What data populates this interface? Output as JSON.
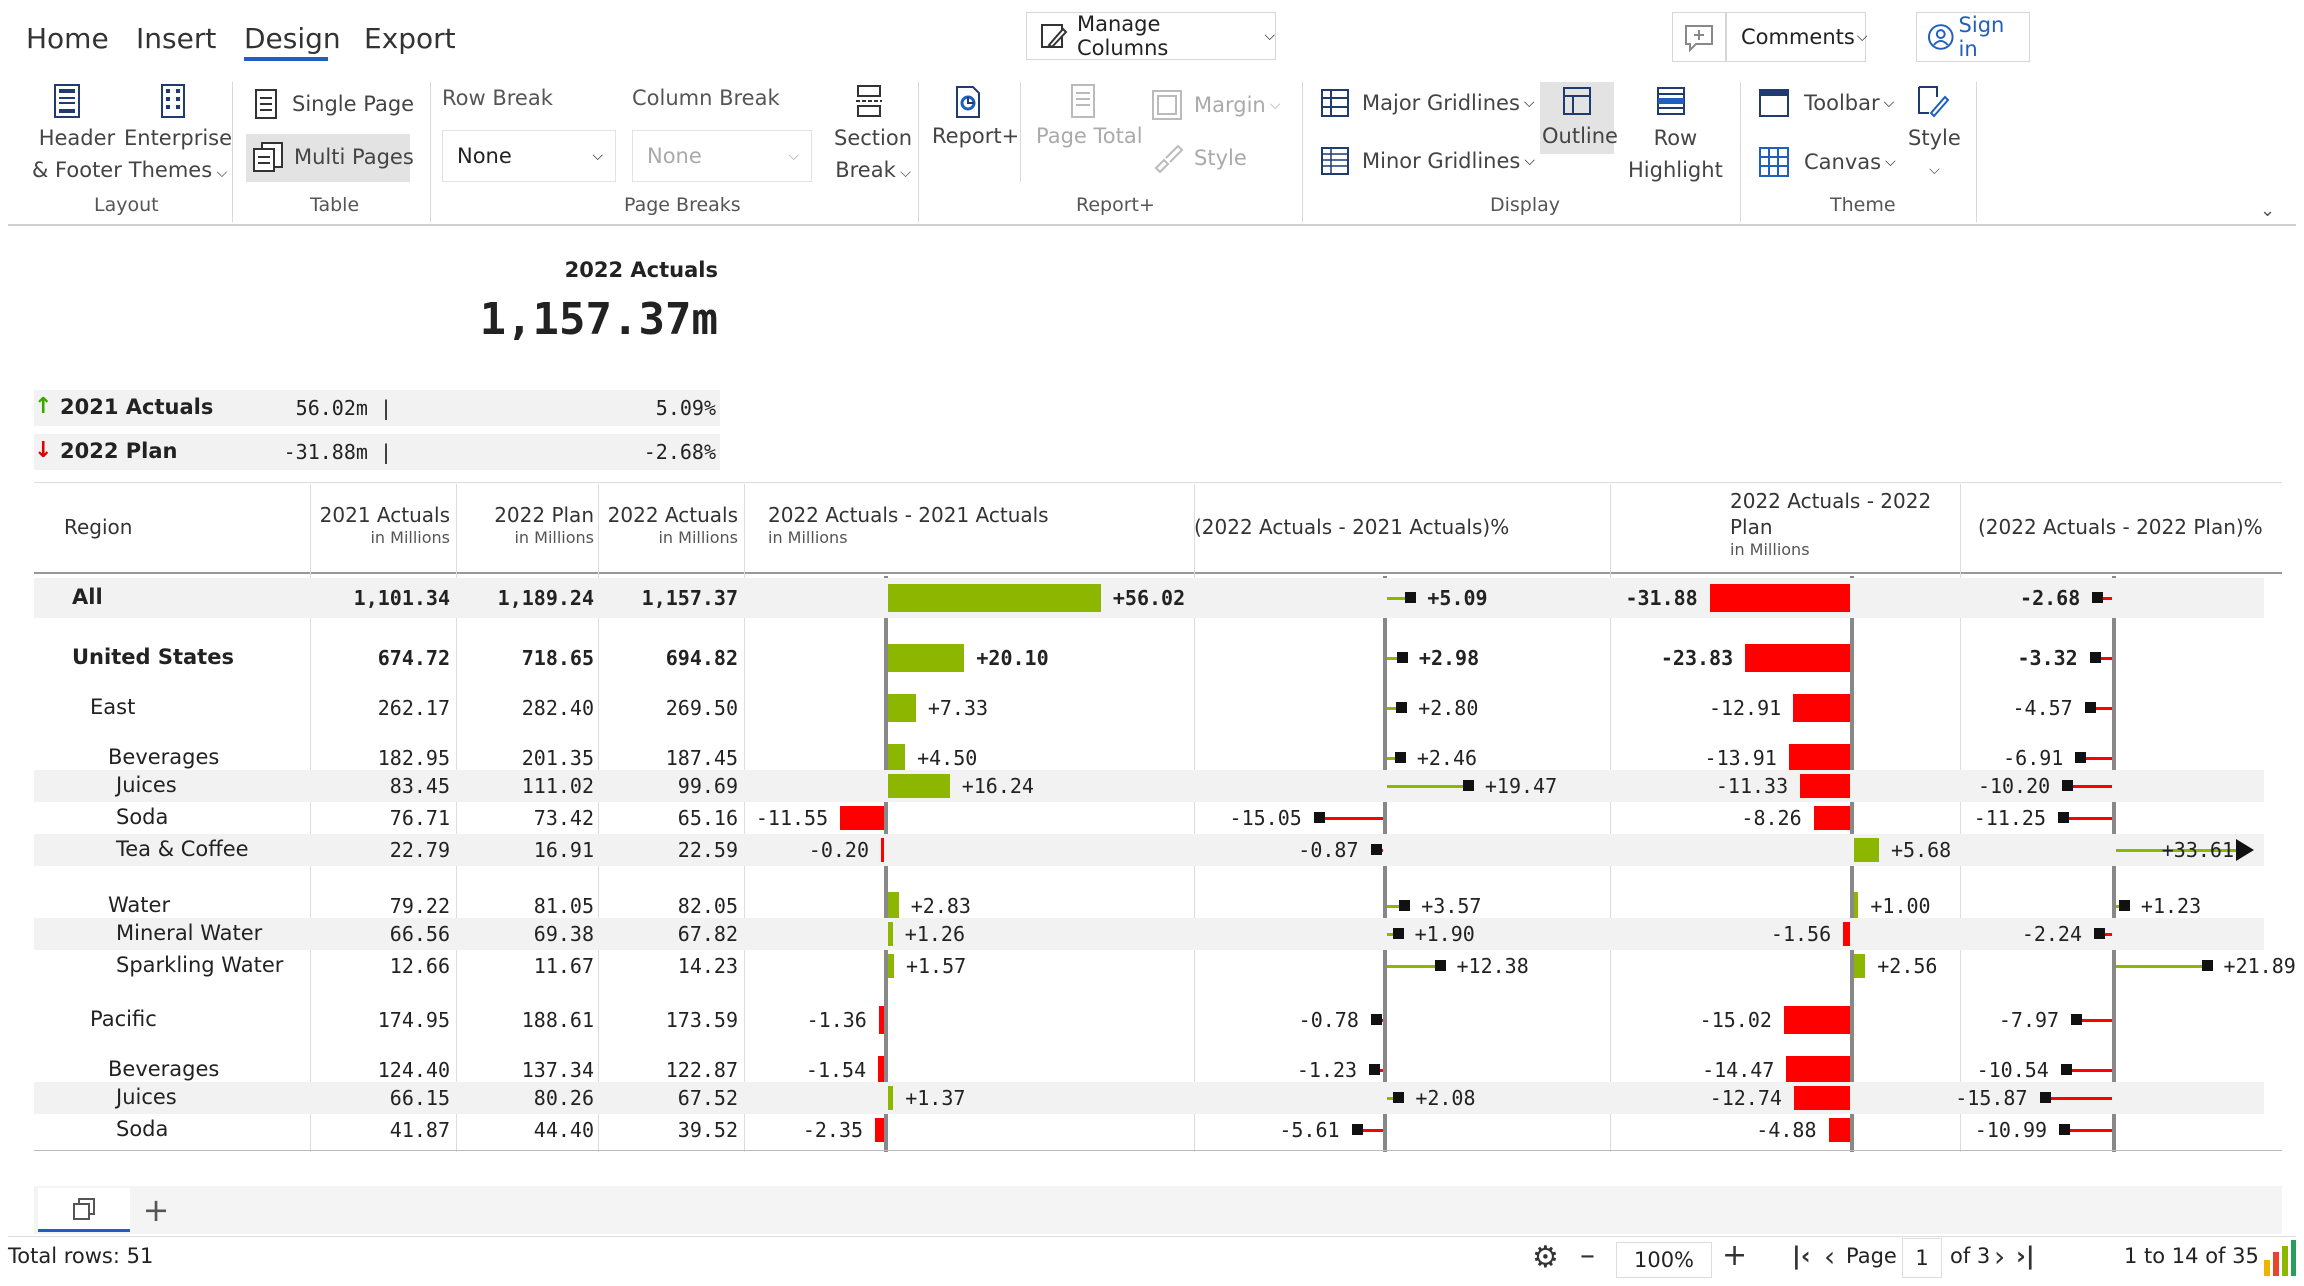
{
  "nav": {
    "tabs": [
      "Home",
      "Insert",
      "Design",
      "Export"
    ],
    "active": "Design"
  },
  "topbar": {
    "manage_columns": "Manage Columns",
    "comments": "Comments",
    "sign_in": "Sign in"
  },
  "ribbon": {
    "layout": {
      "header_footer_1": "Header",
      "header_footer_2": "& Footer",
      "themes_1": "Enterprise",
      "themes_2": "Themes",
      "title": "Layout"
    },
    "table": {
      "single_page": "Single Page",
      "multi_pages": "Multi Pages",
      "title": "Table"
    },
    "page_breaks": {
      "row_break_label": "Row Break",
      "row_break_value": "None",
      "column_break_label": "Column Break",
      "column_break_value": "None",
      "section_1": "Section",
      "section_2": "Break",
      "title": "Page Breaks"
    },
    "report_plus": {
      "report": "Report+",
      "page_total": "Page Total",
      "margin": "Margin",
      "style": "Style",
      "title": "Report+"
    },
    "display": {
      "major": "Major Gridlines",
      "minor": "Minor Gridlines",
      "outline": "Outline",
      "row_hl_1": "Row",
      "row_hl_2": "Highlight",
      "title": "Display"
    },
    "theme": {
      "toolbar": "Toolbar",
      "canvas": "Canvas",
      "style": "Style",
      "title": "Theme"
    }
  },
  "kpi": {
    "title": "2022 Actuals",
    "value": "1,157.37m",
    "rows": [
      {
        "label": "2021 Actuals",
        "abs": "56.02m |",
        "pct": "5.09%",
        "dir": "up"
      },
      {
        "label": "2022 Plan",
        "abs": "-31.88m |",
        "pct": "-2.68%",
        "dir": "down"
      }
    ]
  },
  "table": {
    "headers": {
      "region": "Region",
      "a21": "2021 Actuals",
      "plan": "2022 Plan",
      "a22": "2022 Actuals",
      "unit": "in Millions",
      "d1": "2022 Actuals - 2021 Actuals",
      "p1": "(2022 Actuals - 2021 Actuals)%",
      "d2_1": "2022 Actuals - 2022",
      "d2_2": "Plan",
      "p2": "(2022 Actuals - 2022 Plan)%"
    },
    "rows": [
      {
        "name": "All",
        "indent": 0,
        "bold": true,
        "a21": "1,101.34",
        "plan": "1,189.24",
        "a22": "1,157.37",
        "d1": 56.02,
        "d1_label": "+56.02",
        "p1": 5.09,
        "p1_label": "+5.09",
        "d2": -31.88,
        "d2_label": "-31.88",
        "p2": -2.68,
        "p2_label": "-2.68"
      },
      {
        "name": "United States",
        "indent": 0,
        "bold": true,
        "a21": "674.72",
        "plan": "718.65",
        "a22": "694.82",
        "d1": 20.1,
        "d1_label": "+20.10",
        "p1": 2.98,
        "p1_label": "+2.98",
        "d2": -23.83,
        "d2_label": "-23.83",
        "p2": -3.32,
        "p2_label": "-3.32"
      },
      {
        "name": "East",
        "indent": 1,
        "bold": false,
        "a21": "262.17",
        "plan": "282.40",
        "a22": "269.50",
        "d1": 7.33,
        "d1_label": "+7.33",
        "p1": 2.8,
        "p1_label": "+2.80",
        "d2": -12.91,
        "d2_label": "-12.91",
        "p2": -4.57,
        "p2_label": "-4.57"
      },
      {
        "name": "Beverages",
        "indent": 2,
        "bold": false,
        "a21": "182.95",
        "plan": "201.35",
        "a22": "187.45",
        "d1": 4.5,
        "d1_label": "+4.50",
        "p1": 2.46,
        "p1_label": "+2.46",
        "d2": -13.91,
        "d2_label": "-13.91",
        "p2": -6.91,
        "p2_label": "-6.91"
      },
      {
        "name": "Juices",
        "indent": 3,
        "bold": false,
        "a21": "83.45",
        "plan": "111.02",
        "a22": "99.69",
        "d1": 16.24,
        "d1_label": "+16.24",
        "p1": 19.47,
        "p1_label": "+19.47",
        "d2": -11.33,
        "d2_label": "-11.33",
        "p2": -10.2,
        "p2_label": "-10.20"
      },
      {
        "name": "Soda",
        "indent": 3,
        "bold": false,
        "a21": "76.71",
        "plan": "73.42",
        "a22": "65.16",
        "d1": -11.55,
        "d1_label": "-11.55",
        "p1": -15.05,
        "p1_label": "-15.05",
        "d2": -8.26,
        "d2_label": "-8.26",
        "p2": -11.25,
        "p2_label": "-11.25"
      },
      {
        "name": "Tea & Coffee",
        "indent": 3,
        "bold": false,
        "a21": "22.79",
        "plan": "16.91",
        "a22": "22.59",
        "d1": -0.2,
        "d1_label": "-0.20",
        "p1": -0.87,
        "p1_label": "-0.87",
        "d2": 5.68,
        "d2_label": "+5.68",
        "p2": 33.61,
        "p2_label": "+33.61",
        "p2_overflow": true
      },
      {
        "name": "Water",
        "indent": 2,
        "bold": false,
        "a21": "79.22",
        "plan": "81.05",
        "a22": "82.05",
        "d1": 2.83,
        "d1_label": "+2.83",
        "p1": 3.57,
        "p1_label": "+3.57",
        "d2": 1.0,
        "d2_label": "+1.00",
        "p2": 1.23,
        "p2_label": "+1.23"
      },
      {
        "name": "Mineral Water",
        "indent": 3,
        "bold": false,
        "a21": "66.56",
        "plan": "69.38",
        "a22": "67.82",
        "d1": 1.26,
        "d1_label": "+1.26",
        "p1": 1.9,
        "p1_label": "+1.90",
        "d2": -1.56,
        "d2_label": "-1.56",
        "p2": -2.24,
        "p2_label": "-2.24"
      },
      {
        "name": "Sparkling Water",
        "indent": 3,
        "bold": false,
        "a21": "12.66",
        "plan": "11.67",
        "a22": "14.23",
        "d1": 1.57,
        "d1_label": "+1.57",
        "p1": 12.38,
        "p1_label": "+12.38",
        "d2": 2.56,
        "d2_label": "+2.56",
        "p2": 21.89,
        "p2_label": "+21.89"
      },
      {
        "name": "Pacific",
        "indent": 1,
        "bold": false,
        "a21": "174.95",
        "plan": "188.61",
        "a22": "173.59",
        "d1": -1.36,
        "d1_label": "-1.36",
        "p1": -0.78,
        "p1_label": "-0.78",
        "d2": -15.02,
        "d2_label": "-15.02",
        "p2": -7.97,
        "p2_label": "-7.97"
      },
      {
        "name": "Beverages",
        "indent": 2,
        "bold": false,
        "a21": "124.40",
        "plan": "137.34",
        "a22": "122.87",
        "d1": -1.54,
        "d1_label": "-1.54",
        "p1": -1.23,
        "p1_label": "-1.23",
        "d2": -14.47,
        "d2_label": "-14.47",
        "p2": -10.54,
        "p2_label": "-10.54"
      },
      {
        "name": "Juices",
        "indent": 3,
        "bold": false,
        "a21": "66.15",
        "plan": "80.26",
        "a22": "67.52",
        "d1": 1.37,
        "d1_label": "+1.37",
        "p1": 2.08,
        "p1_label": "+2.08",
        "d2": -12.74,
        "d2_label": "-12.74",
        "p2": -15.87,
        "p2_label": "-15.87"
      },
      {
        "name": "Soda",
        "indent": 3,
        "bold": false,
        "a21": "41.87",
        "plan": "44.40",
        "a22": "39.52",
        "d1": -2.35,
        "d1_label": "-2.35",
        "p1": -5.61,
        "p1_label": "-5.61",
        "d2": -4.88,
        "d2_label": "-4.88",
        "p2": -10.99,
        "p2_label": "-10.99"
      }
    ]
  },
  "colors": {
    "positive": "#8db600",
    "negative": "#ff0000",
    "accent": "#1f5fbf"
  },
  "status": {
    "total_rows": "Total rows: 51",
    "zoom": "100%",
    "page_label": "Page",
    "page_value": "1",
    "of_pages": "of 3",
    "range": "1 to 14 of 35"
  }
}
